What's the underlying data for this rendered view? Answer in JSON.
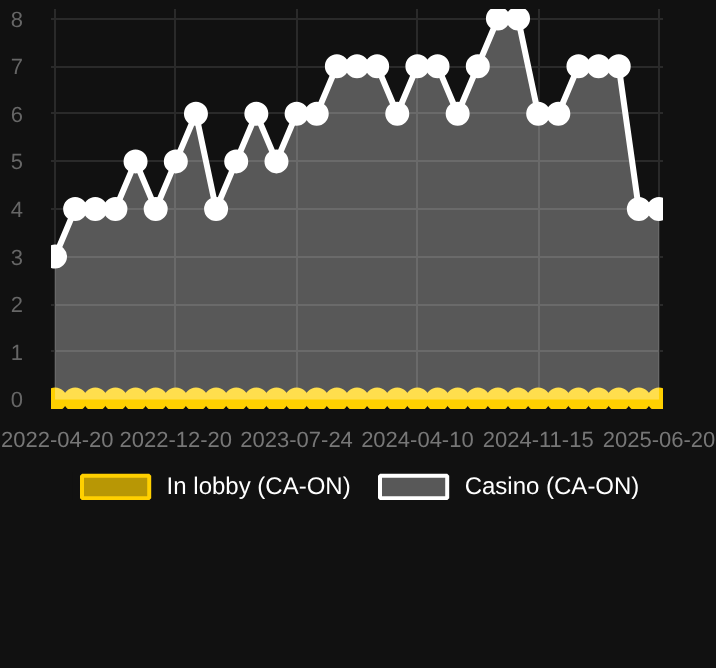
{
  "chart_data": {
    "type": "area",
    "categories": [
      "2022-04-20",
      null,
      null,
      null,
      null,
      null,
      "2022-12-20",
      null,
      null,
      null,
      null,
      null,
      "2023-07-24",
      null,
      null,
      null,
      null,
      null,
      "2024-04-10",
      null,
      null,
      null,
      null,
      null,
      "2024-11-15",
      null,
      null,
      null,
      null,
      null,
      "2025-06-20"
    ],
    "series": [
      {
        "name": "In lobby (CA-ON)",
        "type": "scatter",
        "color": "#ffd000",
        "values": [
          0,
          0,
          0,
          0,
          0,
          0,
          0,
          0,
          0,
          0,
          0,
          0,
          0,
          0,
          0,
          0,
          0,
          0,
          0,
          0,
          0,
          0,
          0,
          0,
          0,
          0,
          0,
          0,
          0,
          0,
          0
        ]
      },
      {
        "name": "Casino (CA-ON)",
        "color": "#ffffff",
        "values": [
          3,
          4,
          4,
          4,
          5,
          4,
          5,
          6,
          4,
          5,
          6,
          5,
          6,
          6,
          7,
          7,
          7,
          6,
          7,
          7,
          6,
          7,
          8,
          8,
          6,
          6,
          7,
          7,
          7,
          4,
          4
        ]
      }
    ],
    "ylim": [
      -0.2,
      8.2
    ],
    "yticks": [
      0,
      1,
      2,
      3,
      4,
      5,
      6,
      7,
      8
    ],
    "grid": true,
    "legend": "bottom",
    "marker": "circle"
  }
}
